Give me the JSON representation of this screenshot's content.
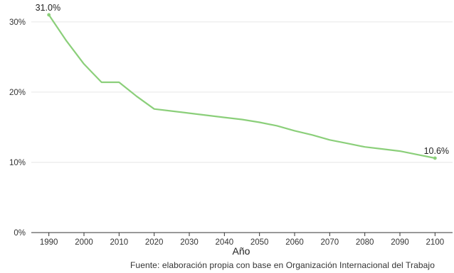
{
  "chart_data": {
    "type": "line",
    "title": "",
    "xlabel": "Año",
    "ylabel": "",
    "source": "Fuente: elaboración propia con base en Organización Internacional del Trabajo",
    "x_ticks": [
      "1990",
      "2000",
      "2010",
      "2020",
      "2030",
      "2040",
      "2050",
      "2060",
      "2070",
      "2080",
      "2090",
      "2100"
    ],
    "y_ticks": [
      "0%",
      "10%",
      "20%",
      "30%"
    ],
    "xlim": [
      1985,
      2105
    ],
    "ylim": [
      0,
      31.5
    ],
    "grid": true,
    "color": "#8bcf7a",
    "series": [
      {
        "x": [
          1990,
          1995,
          2000,
          2005,
          2010,
          2015,
          2020,
          2025,
          2030,
          2035,
          2040,
          2045,
          2050,
          2055,
          2060,
          2065,
          2070,
          2075,
          2080,
          2085,
          2090,
          2095,
          2100
        ],
        "values": [
          31.0,
          27.3,
          24.0,
          21.4,
          21.4,
          19.4,
          17.6,
          17.3,
          17.0,
          16.7,
          16.4,
          16.1,
          15.7,
          15.2,
          14.5,
          13.9,
          13.2,
          12.7,
          12.2,
          11.9,
          11.6,
          11.1,
          10.6
        ]
      }
    ],
    "data_labels": [
      {
        "index": 0,
        "text": "31.0%"
      },
      {
        "index": 22,
        "text": "10.6%"
      }
    ]
  }
}
